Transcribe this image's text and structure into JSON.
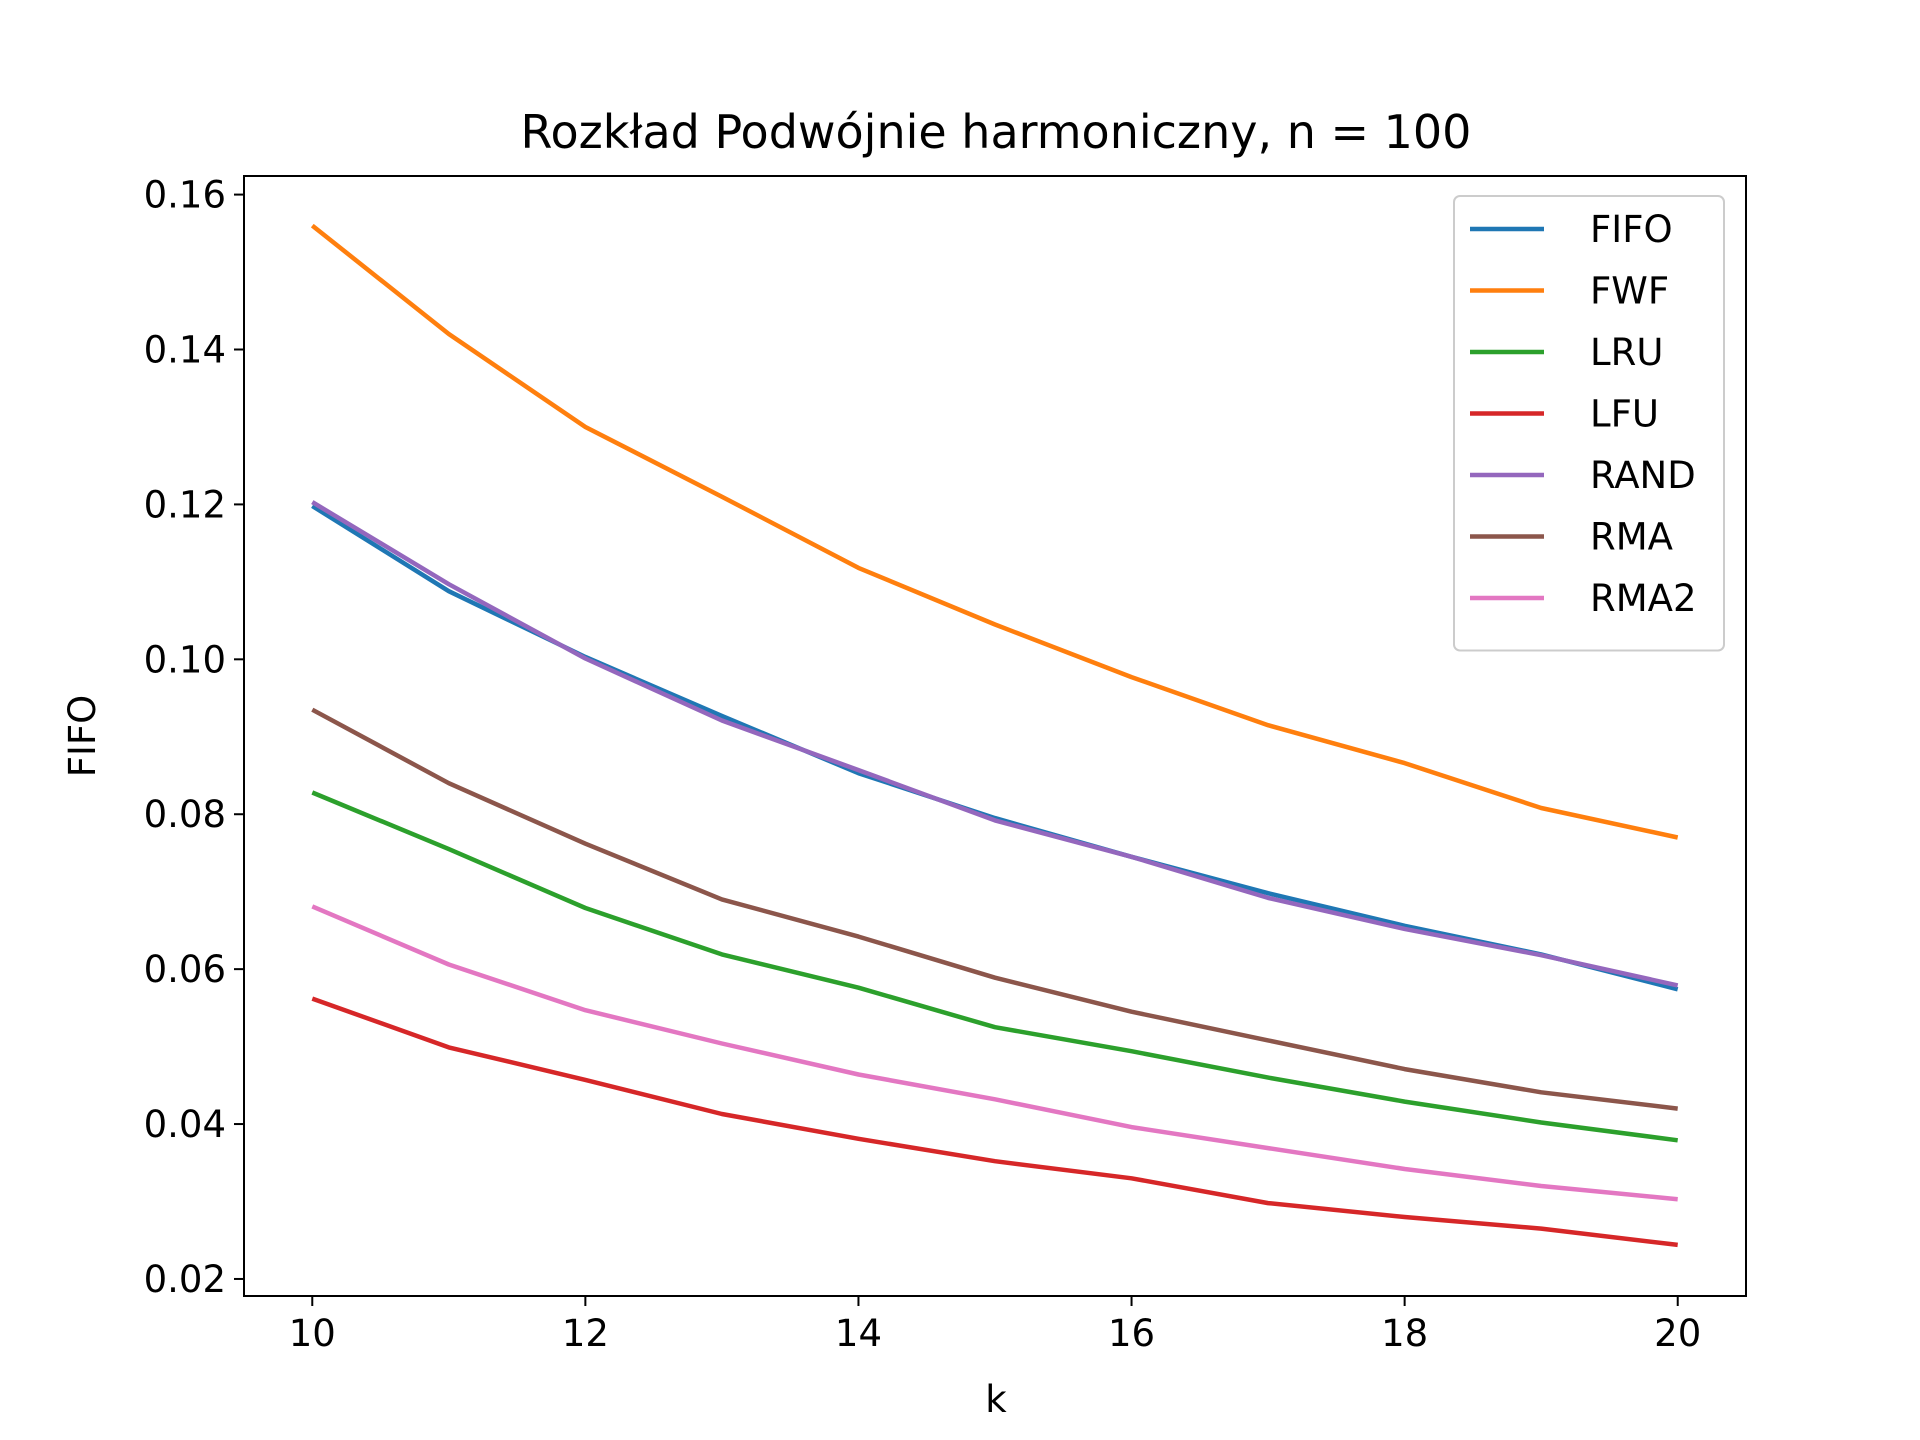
{
  "chart_data": {
    "type": "line",
    "title": "Rozkład Podwójnie harmoniczny, n = 100",
    "xlabel": "k",
    "ylabel": "FIFO",
    "xlim": [
      9.5,
      20.5
    ],
    "ylim": [
      0.0178,
      0.1624
    ],
    "x_ticks": [
      10,
      12,
      14,
      16,
      18,
      20
    ],
    "x_tick_labels": [
      "10",
      "12",
      "14",
      "16",
      "18",
      "20"
    ],
    "y_ticks": [
      0.02,
      0.04,
      0.06,
      0.08,
      0.1,
      0.12,
      0.14,
      0.16
    ],
    "y_tick_labels": [
      "0.02",
      "0.04",
      "0.06",
      "0.08",
      "0.10",
      "0.12",
      "0.14",
      "0.16"
    ],
    "grid": false,
    "legend_position": "top-right",
    "x": [
      10,
      11,
      12,
      13,
      14,
      15,
      16,
      17,
      18,
      19,
      20
    ],
    "series": [
      {
        "name": "FIFO",
        "color": "#1f77b4",
        "values": [
          0.1198,
          0.1088,
          0.1003,
          0.0927,
          0.0853,
          0.0795,
          0.0745,
          0.0698,
          0.0656,
          0.0619,
          0.0574
        ]
      },
      {
        "name": "FWF",
        "color": "#ff7f0e",
        "values": [
          0.156,
          0.142,
          0.13,
          0.121,
          0.1118,
          0.1045,
          0.0977,
          0.0915,
          0.0866,
          0.0808,
          0.077
        ]
      },
      {
        "name": "LRU",
        "color": "#2ca02c",
        "values": [
          0.0828,
          0.0755,
          0.0679,
          0.0619,
          0.0576,
          0.0525,
          0.0494,
          0.046,
          0.0429,
          0.0402,
          0.0379
        ]
      },
      {
        "name": "LFU",
        "color": "#d62728",
        "values": [
          0.0562,
          0.0499,
          0.0457,
          0.0413,
          0.0381,
          0.0352,
          0.033,
          0.0298,
          0.028,
          0.0265,
          0.0244
        ]
      },
      {
        "name": "RAND",
        "color": "#9467bd",
        "values": [
          0.1203,
          0.1097,
          0.1001,
          0.0921,
          0.0857,
          0.0792,
          0.0745,
          0.0692,
          0.0652,
          0.0618,
          0.0579
        ]
      },
      {
        "name": "RMA",
        "color": "#8c564b",
        "values": [
          0.0935,
          0.084,
          0.0762,
          0.069,
          0.0642,
          0.0589,
          0.0545,
          0.0508,
          0.0471,
          0.0441,
          0.042
        ]
      },
      {
        "name": "RMA2",
        "color": "#e377c2",
        "values": [
          0.0681,
          0.0606,
          0.0547,
          0.0504,
          0.0464,
          0.0432,
          0.0396,
          0.0369,
          0.0342,
          0.032,
          0.0303
        ]
      }
    ]
  }
}
